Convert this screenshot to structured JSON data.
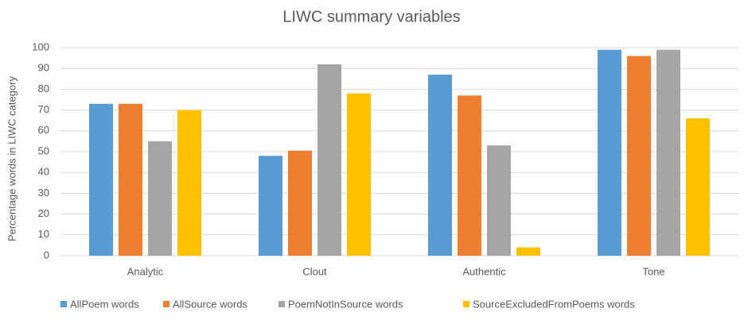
{
  "chart_data": {
    "type": "bar",
    "title": "LIWC summary variables",
    "y_label": "Percentage words in LIWC category",
    "categories": [
      "Analytic",
      "Clout",
      "Authentic",
      "Tone"
    ],
    "series": [
      {
        "name": "AllPoem words",
        "color": "#5b9bd5",
        "values": [
          73,
          48,
          87,
          99
        ]
      },
      {
        "name": "AllSource words",
        "color": "#ed7d31",
        "values": [
          73,
          50.5,
          77,
          96
        ]
      },
      {
        "name": "PoemNotInSource words",
        "color": "#a5a5a5",
        "values": [
          55,
          92,
          53,
          99
        ]
      },
      {
        "name": "SourceExcludedFromPoems words",
        "color": "#ffc000",
        "values": [
          70,
          78,
          4,
          66
        ]
      }
    ],
    "ylim": [
      0,
      100
    ],
    "yticks": [
      0,
      10,
      20,
      30,
      40,
      50,
      60,
      70,
      80,
      90,
      100
    ],
    "grid": true,
    "legend": "bottom"
  }
}
